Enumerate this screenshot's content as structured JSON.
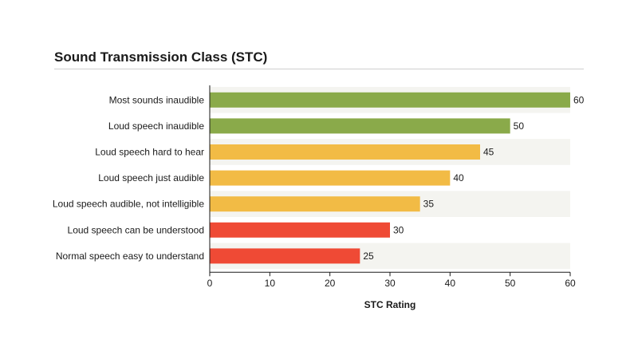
{
  "chart_data": {
    "type": "bar",
    "orientation": "horizontal",
    "title": "Sound Transmission Class (STC)",
    "xlabel": "STC Rating",
    "ylabel": "",
    "xlim": [
      0,
      60
    ],
    "xticks": [
      0,
      10,
      20,
      30,
      40,
      50,
      60
    ],
    "grid": false,
    "alternating_row_shading": true,
    "categories": [
      "Most sounds inaudible",
      "Loud speech inaudible",
      "Loud speech hard to hear",
      "Loud speech just audible",
      "Loud speech audible, not intelligible",
      "Loud speech can be understood",
      "Normal speech easy to understand"
    ],
    "values": [
      60,
      50,
      45,
      40,
      35,
      30,
      25
    ],
    "bar_colors": [
      "#8aaa4a",
      "#8aaa4a",
      "#f2bb45",
      "#f2bb45",
      "#f2bb45",
      "#ef4a35",
      "#ef4a35"
    ],
    "row_shade_color": "#f4f4f0"
  }
}
